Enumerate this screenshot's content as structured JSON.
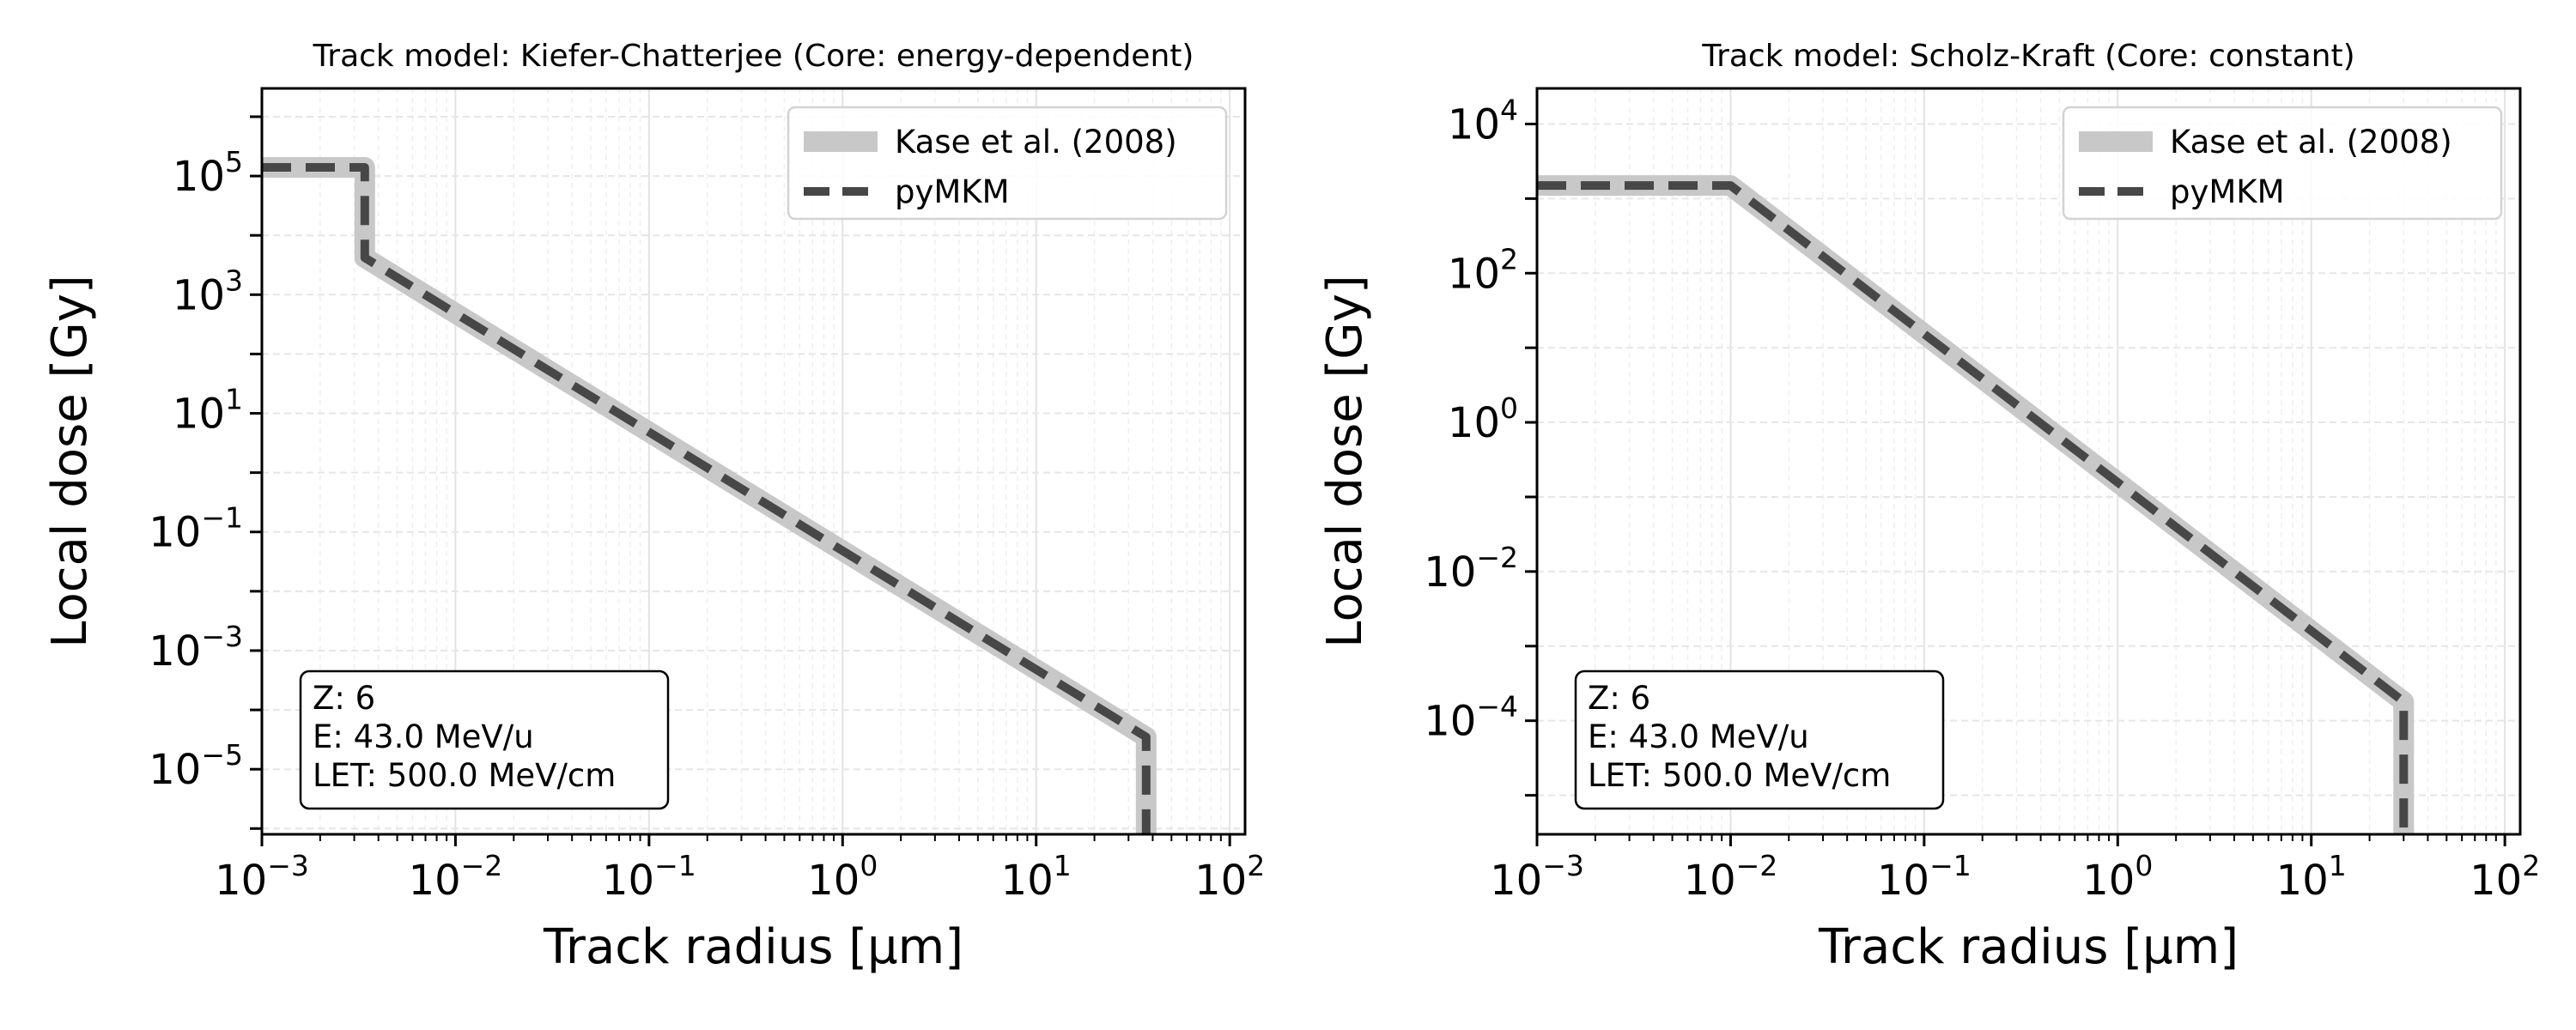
{
  "chart_data": [
    {
      "type": "line",
      "title": "Track model: Kiefer-Chatterjee (Core: energy-dependent)",
      "xlabel": "Track radius [μm]",
      "ylabel": "Local dose [Gy]",
      "xscale": "log",
      "yscale": "log",
      "xlim": [
        0.001,
        120
      ],
      "ylim": [
        8e-07,
        3000000.0
      ],
      "xticks": [
        {
          "value": 0.001,
          "label": "10",
          "exp": "−3"
        },
        {
          "value": 0.01,
          "label": "10",
          "exp": "−2"
        },
        {
          "value": 0.1,
          "label": "10",
          "exp": "−1"
        },
        {
          "value": 1,
          "label": "10",
          "exp": "0"
        },
        {
          "value": 10,
          "label": "10",
          "exp": "1"
        },
        {
          "value": 100,
          "label": "10",
          "exp": "2"
        }
      ],
      "yticks": [
        {
          "value": 100000,
          "label": "10",
          "exp": "5"
        },
        {
          "value": 1000,
          "label": "10",
          "exp": "3"
        },
        {
          "value": 10,
          "label": "10",
          "exp": "1"
        },
        {
          "value": 0.1,
          "label": "10",
          "exp": "−1"
        },
        {
          "value": 0.001,
          "label": "10",
          "exp": "−3"
        },
        {
          "value": 1e-05,
          "label": "10",
          "exp": "−5"
        }
      ],
      "grid": true,
      "legend_position": "top-right",
      "series": [
        {
          "name": "Kase et al. (2008)",
          "style": "solid",
          "color": "#c8c8c8",
          "x": [
            0.001,
            0.0034,
            0.0034,
            37,
            37
          ],
          "y": [
            140000,
            140000,
            4200,
            3.5e-05,
            8e-07
          ]
        },
        {
          "name": "pyMKM",
          "style": "dashed",
          "color": "#474747",
          "x": [
            0.001,
            0.0034,
            0.0034,
            37,
            37
          ],
          "y": [
            140000,
            140000,
            4200,
            3.5e-05,
            8e-07
          ]
        }
      ],
      "annotation": [
        "Z: 6",
        "E: 43.0 MeV/u",
        "LET: 500.0 MeV/cm"
      ]
    },
    {
      "type": "line",
      "title": "Track model: Scholz-Kraft (Core: constant)",
      "xlabel": "Track radius [μm]",
      "ylabel": "Local dose [Gy]",
      "xscale": "log",
      "yscale": "log",
      "xlim": [
        0.001,
        120
      ],
      "ylim": [
        3e-06,
        30000
      ],
      "xticks": [
        {
          "value": 0.001,
          "label": "10",
          "exp": "−3"
        },
        {
          "value": 0.01,
          "label": "10",
          "exp": "−2"
        },
        {
          "value": 0.1,
          "label": "10",
          "exp": "−1"
        },
        {
          "value": 1,
          "label": "10",
          "exp": "0"
        },
        {
          "value": 10,
          "label": "10",
          "exp": "1"
        },
        {
          "value": 100,
          "label": "10",
          "exp": "2"
        }
      ],
      "yticks": [
        {
          "value": 10000,
          "label": "10",
          "exp": "4"
        },
        {
          "value": 100,
          "label": "10",
          "exp": "2"
        },
        {
          "value": 1,
          "label": "10",
          "exp": "0"
        },
        {
          "value": 0.01,
          "label": "10",
          "exp": "−2"
        },
        {
          "value": 0.0001,
          "label": "10",
          "exp": "−4"
        }
      ],
      "grid": true,
      "legend_position": "top-right",
      "series": [
        {
          "name": "Kase et al. (2008)",
          "style": "solid",
          "color": "#c8c8c8",
          "x": [
            0.001,
            0.01,
            30,
            30
          ],
          "y": [
            1500,
            1500,
            0.00018,
            3e-06
          ]
        },
        {
          "name": "pyMKM",
          "style": "dashed",
          "color": "#474747",
          "x": [
            0.001,
            0.01,
            30,
            30
          ],
          "y": [
            1500,
            1500,
            0.00018,
            3e-06
          ]
        }
      ],
      "annotation": [
        "Z: 6",
        "E: 43.0 MeV/u",
        "LET: 500.0 MeV/cm"
      ]
    }
  ]
}
